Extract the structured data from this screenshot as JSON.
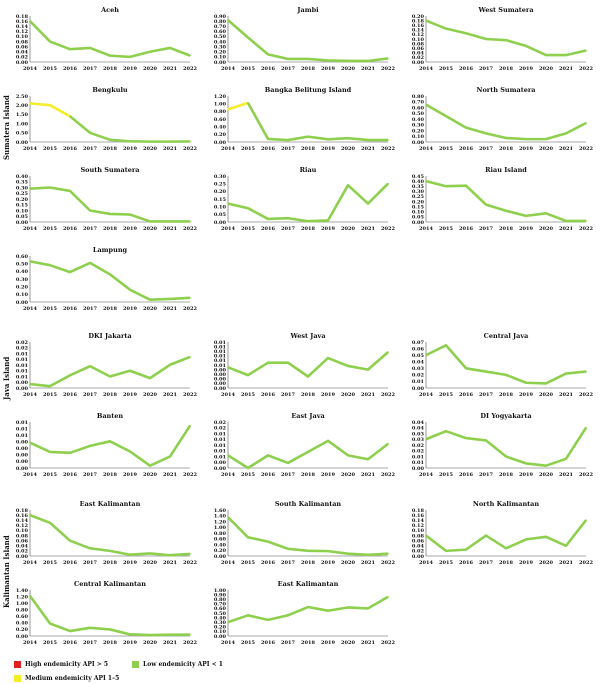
{
  "colors": {
    "high": "#e02020",
    "medium": "#f4ee2a",
    "low": "#8ed04e",
    "axis": "#555555"
  },
  "years": [
    "2014",
    "2015",
    "2016",
    "2017",
    "2018",
    "2019",
    "2020",
    "2021",
    "2022"
  ],
  "islands": {
    "sumatera": "Sumatera Island",
    "java": "Java Island",
    "kalimantan": "Kalimantan Island"
  },
  "legend": {
    "high": "High endemicity API > 5",
    "medium": "Medium endemicity API 1–5",
    "low": "Low endemicity API < 1"
  },
  "chart_data": [
    {
      "type": "line",
      "title": "Aceh",
      "ylim": [
        0,
        0.18
      ],
      "yticks": [
        "0.00",
        "0.02",
        "0.04",
        "0.06",
        "0.08",
        "0.10",
        "0.12",
        "0.14",
        "0.16",
        "0.18"
      ],
      "values": [
        0.16,
        0.08,
        0.05,
        0.055,
        0.025,
        0.02,
        0.04,
        0.055,
        0.025
      ],
      "medium_until": 0
    },
    {
      "type": "line",
      "title": "Jambi",
      "ylim": [
        0,
        0.9
      ],
      "yticks": [
        "0.00",
        "0.10",
        "0.20",
        "0.30",
        "0.40",
        "0.50",
        "0.60",
        "0.70",
        "0.80",
        "0.90"
      ],
      "values": [
        0.82,
        0.48,
        0.15,
        0.06,
        0.06,
        0.03,
        0.02,
        0.02,
        0.07
      ],
      "medium_until": 0
    },
    {
      "type": "line",
      "title": "West Sumatera",
      "ylim": [
        0,
        0.2
      ],
      "yticks": [
        "0.00",
        "0.02",
        "0.04",
        "0.06",
        "0.08",
        "0.10",
        "0.12",
        "0.14",
        "0.16",
        "0.18",
        "0.20"
      ],
      "values": [
        0.18,
        0.145,
        0.125,
        0.1,
        0.095,
        0.07,
        0.03,
        0.03,
        0.05
      ],
      "medium_until": 0
    },
    {
      "type": "line",
      "title": "Bengkulu",
      "ylim": [
        0,
        2.5
      ],
      "yticks": [
        "0.00",
        "0.50",
        "1.00",
        "1.50",
        "2.00",
        "2.50"
      ],
      "values": [
        2.1,
        2.0,
        1.4,
        0.5,
        0.12,
        0.04,
        0.02,
        0.02,
        0.03
      ],
      "medium_until": 2
    },
    {
      "type": "line",
      "title": "Bangka Belitung Island",
      "ylim": [
        0,
        1.2
      ],
      "yticks": [
        "0.00",
        "0.20",
        "0.40",
        "0.60",
        "0.80",
        "1.00",
        "1.20"
      ],
      "values": [
        0.85,
        1.02,
        0.08,
        0.05,
        0.14,
        0.07,
        0.1,
        0.05,
        0.05
      ],
      "medium_until": 1
    },
    {
      "type": "line",
      "title": "North Sumatera",
      "ylim": [
        0,
        0.8
      ],
      "yticks": [
        "0.00",
        "0.10",
        "0.20",
        "0.30",
        "0.40",
        "0.50",
        "0.60",
        "0.70",
        "0.80"
      ],
      "values": [
        0.65,
        0.45,
        0.25,
        0.15,
        0.07,
        0.05,
        0.05,
        0.15,
        0.33
      ],
      "medium_until": 0
    },
    {
      "type": "line",
      "title": "South Sumatera",
      "ylim": [
        0,
        0.4
      ],
      "yticks": [
        "0.00",
        "0.05",
        "0.10",
        "0.15",
        "0.20",
        "0.25",
        "0.30",
        "0.35",
        "0.40"
      ],
      "values": [
        0.29,
        0.3,
        0.27,
        0.1,
        0.07,
        0.065,
        0.005,
        0.005,
        0.005
      ],
      "medium_until": 0
    },
    {
      "type": "line",
      "title": "Riau",
      "ylim": [
        0,
        0.3
      ],
      "yticks": [
        "0.00",
        "0.05",
        "0.10",
        "0.15",
        "0.20",
        "0.25",
        "0.30"
      ],
      "values": [
        0.12,
        0.09,
        0.02,
        0.025,
        0.005,
        0.01,
        0.24,
        0.12,
        0.25
      ],
      "medium_until": 0
    },
    {
      "type": "line",
      "title": "Riau Island",
      "ylim": [
        0,
        0.45
      ],
      "yticks": [
        "0.00",
        "0.05",
        "0.10",
        "0.15",
        "0.20",
        "0.25",
        "0.30",
        "0.35",
        "0.40",
        "0.45"
      ],
      "values": [
        0.4,
        0.35,
        0.355,
        0.17,
        0.11,
        0.06,
        0.085,
        0.01,
        0.01
      ],
      "medium_until": 0
    },
    {
      "type": "line",
      "title": "Lampung",
      "ylim": [
        0,
        0.6
      ],
      "yticks": [
        "0.00",
        "0.10",
        "0.20",
        "0.30",
        "0.40",
        "0.50",
        "0.60"
      ],
      "values": [
        0.53,
        0.48,
        0.39,
        0.51,
        0.36,
        0.16,
        0.03,
        0.04,
        0.055
      ],
      "medium_until": 0
    },
    {
      "type": "line",
      "title": "DKI Jakarta",
      "ylim": [
        0,
        0.02
      ],
      "yticks": [
        "0.00",
        "0.00",
        "0.01",
        "0.01",
        "0.01",
        "0.01",
        "0.01",
        "0.02",
        "0.02"
      ],
      "values": [
        0.0017,
        0.0008,
        0.0055,
        0.0095,
        0.005,
        0.0075,
        0.0043,
        0.0101,
        0.0135
      ],
      "medium_until": 0
    },
    {
      "type": "line",
      "title": "West Java",
      "ylim": [
        0,
        0.01
      ],
      "yticks": [
        "0.00",
        "0.00",
        "0.00",
        "0.00",
        "0.00",
        "0.01",
        "0.01",
        "0.01",
        "0.01",
        "0.01",
        "0.01"
      ],
      "values": [
        0.0045,
        0.0028,
        0.0055,
        0.0055,
        0.0025,
        0.0065,
        0.0048,
        0.004,
        0.0078
      ],
      "medium_until": 0
    },
    {
      "type": "line",
      "title": "Central Java",
      "ylim": [
        0,
        0.07
      ],
      "yticks": [
        "0.00",
        "0.01",
        "0.02",
        "0.03",
        "0.04",
        "0.05",
        "0.06",
        "0.07"
      ],
      "values": [
        0.05,
        0.065,
        0.03,
        0.025,
        0.02,
        0.008,
        0.007,
        0.022,
        0.025
      ],
      "medium_until": 0
    },
    {
      "type": "line",
      "title": "Banten",
      "ylim": [
        0,
        0.01
      ],
      "yticks": [
        "0.00",
        "0.00",
        "0.00",
        "0.00",
        "0.00",
        "0.01",
        "0.01",
        "0.01"
      ],
      "values": [
        0.0055,
        0.0035,
        0.0033,
        0.0048,
        0.0058,
        0.0036,
        0.0005,
        0.0025,
        0.0092
      ],
      "medium_until": 0
    },
    {
      "type": "line",
      "title": "East Java",
      "ylim": [
        0,
        0.02
      ],
      "yticks": [
        "0.00",
        "0.00",
        "0.01",
        "0.01",
        "0.01",
        "0.01",
        "0.01",
        "0.02",
        "0.02"
      ],
      "values": [
        0.0055,
        0.0,
        0.0055,
        0.0022,
        0.007,
        0.0118,
        0.0055,
        0.0038,
        0.0105
      ],
      "medium_until": 0
    },
    {
      "type": "line",
      "title": "DI Yogyakarta",
      "ylim": [
        0,
        0.04
      ],
      "yticks": [
        "0.00",
        "0.01",
        "0.01",
        "0.02",
        "0.02",
        "0.03",
        "0.03",
        "0.04",
        "0.04"
      ],
      "values": [
        0.025,
        0.032,
        0.026,
        0.024,
        0.01,
        0.004,
        0.002,
        0.008,
        0.035
      ],
      "medium_until": 0
    },
    {
      "type": "line",
      "title": "East Kalimantan",
      "ylim": [
        0,
        0.18
      ],
      "yticks": [
        "0.00",
        "0.02",
        "0.04",
        "0.06",
        "0.08",
        "0.10",
        "0.12",
        "0.14",
        "0.16",
        "0.18"
      ],
      "values": [
        0.16,
        0.13,
        0.06,
        0.03,
        0.02,
        0.005,
        0.01,
        0.003,
        0.008
      ],
      "medium_until": 0
    },
    {
      "type": "line",
      "title": "South Kalimantan",
      "ylim": [
        0,
        1.6
      ],
      "yticks": [
        "0.00",
        "0.20",
        "0.40",
        "0.60",
        "0.80",
        "1.00",
        "1.20",
        "1.40",
        "1.60"
      ],
      "values": [
        1.35,
        0.65,
        0.5,
        0.25,
        0.18,
        0.17,
        0.08,
        0.04,
        0.08
      ],
      "medium_until": 0
    },
    {
      "type": "line",
      "title": "North Kalimantan",
      "ylim": [
        0,
        0.18
      ],
      "yticks": [
        "0.00",
        "0.02",
        "0.04",
        "0.06",
        "0.08",
        "0.10",
        "0.12",
        "0.14",
        "0.16",
        "0.18"
      ],
      "values": [
        0.08,
        0.02,
        0.025,
        0.08,
        0.03,
        0.065,
        0.075,
        0.04,
        0.14
      ],
      "medium_until": 0
    },
    {
      "type": "line",
      "title": "Central Kalimantan",
      "ylim": [
        0,
        1.4
      ],
      "yticks": [
        "0.00",
        "0.20",
        "0.40",
        "0.60",
        "0.80",
        "1.00",
        "1.20",
        "1.40"
      ],
      "values": [
        1.22,
        0.38,
        0.15,
        0.25,
        0.2,
        0.05,
        0.03,
        0.04,
        0.04
      ],
      "medium_until": 0
    },
    {
      "type": "line",
      "title": "East Kalimantan",
      "ylim": [
        0,
        1.0
      ],
      "yticks": [
        "0.00",
        "0.10",
        "0.20",
        "0.30",
        "0.40",
        "0.50",
        "0.60",
        "0.70",
        "0.80",
        "0.90",
        "1.00"
      ],
      "values": [
        0.3,
        0.45,
        0.35,
        0.45,
        0.63,
        0.55,
        0.62,
        0.6,
        0.85
      ],
      "medium_until": 0
    }
  ]
}
